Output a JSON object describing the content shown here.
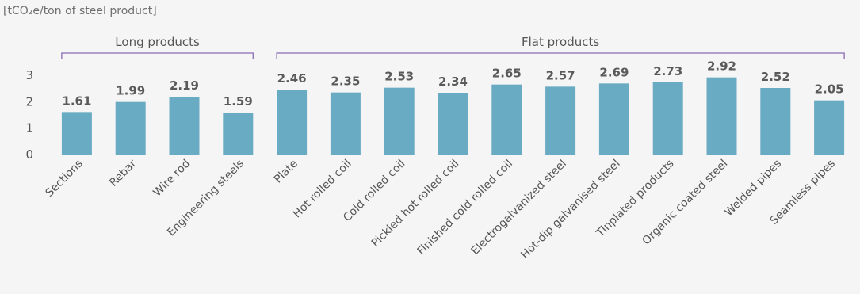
{
  "unit_label": "[tCO₂e/ton of steel product]",
  "colors": {
    "bar": "#6aabc4",
    "bracket": "#8a6bb5",
    "axis": "#7a7a7a",
    "background": "#f5f5f5"
  },
  "groups": [
    {
      "label": "Long products"
    },
    {
      "label": "Flat products"
    }
  ],
  "chart_data": {
    "type": "bar",
    "categories": [
      "Sections",
      "Rebar",
      "Wire rod",
      "Engineering steels",
      "Plate",
      "Hot rolled coil",
      "Cold rolled coil",
      "Pickled hot rolled coil",
      "Finished cold rolled coil",
      "Electrogalvanized steel",
      "Hot-dip galvanised steel",
      "Tinplated products",
      "Organic coated steel",
      "Welded pipes",
      "Seamless pipes"
    ],
    "values": [
      1.61,
      1.99,
      2.19,
      1.59,
      2.46,
      2.35,
      2.53,
      2.34,
      2.65,
      2.57,
      2.69,
      2.73,
      2.92,
      2.52,
      2.05
    ],
    "value_labels": [
      "1.61",
      "1.99",
      "2.19",
      "1.59",
      "2.46",
      "2.35",
      "2.53",
      "2.34",
      "2.65",
      "2.57",
      "2.69",
      "2.73",
      "2.92",
      "2.52",
      "2.05"
    ],
    "y_ticks": [
      "0",
      "1",
      "2",
      "3"
    ],
    "ylim": [
      0,
      3
    ],
    "ylabel": "[tCO₂e/ton of steel product]",
    "groups": [
      {
        "label": "Long products",
        "categories": [
          "Sections",
          "Rebar",
          "Wire rod",
          "Engineering steels"
        ]
      },
      {
        "label": "Flat products",
        "categories": [
          "Plate",
          "Hot rolled coil",
          "Cold rolled coil",
          "Pickled hot rolled coil",
          "Finished cold rolled coil",
          "Electrogalvanized steel",
          "Hot-dip galvanised steel",
          "Tinplated products",
          "Organic coated steel",
          "Welded pipes",
          "Seamless pipes"
        ]
      }
    ],
    "grid": false,
    "legend": "none"
  }
}
